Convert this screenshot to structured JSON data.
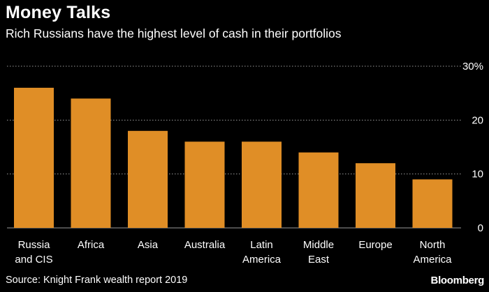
{
  "header": {
    "title": "Money Talks",
    "subtitle": "Rich Russians have the highest level of cash in their portfolios"
  },
  "footer": {
    "source": "Source: Knight Frank wealth report 2019",
    "brand": "Bloomberg"
  },
  "chart_data": {
    "type": "bar",
    "title": "Money Talks",
    "subtitle": "Rich Russians have the highest level of cash in their portfolios",
    "categories": [
      [
        "Russia",
        "and CIS"
      ],
      [
        "Africa"
      ],
      [
        "Asia"
      ],
      [
        "Australia"
      ],
      [
        "Latin",
        "America"
      ],
      [
        "Middle",
        "East"
      ],
      [
        "Europe"
      ],
      [
        "North",
        "America"
      ]
    ],
    "values": [
      26,
      24,
      18,
      16,
      16,
      14,
      12,
      9
    ],
    "ylim": [
      0,
      30
    ],
    "yticks": [
      0,
      10,
      20,
      30
    ],
    "ytick_labels": [
      "0",
      "10",
      "20",
      "30%"
    ],
    "xlabel": "",
    "ylabel": "",
    "grid": true,
    "bar_color": "#e08e26",
    "grid_color": "#9a9a9a",
    "background_color": "#000000"
  }
}
